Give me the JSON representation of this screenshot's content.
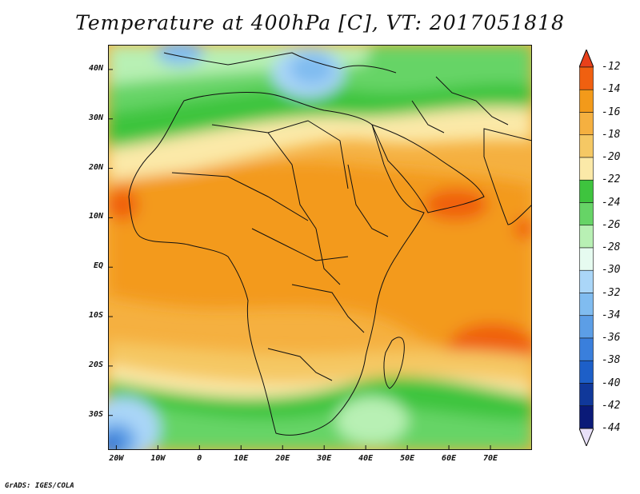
{
  "title": "Temperature at 400hPa [C], VT: 2017051818",
  "credit": "GrADS: IGES/COLA",
  "map": {
    "lon_range": [
      -22,
      80
    ],
    "lat_range": [
      -37,
      45
    ],
    "lat_labels": [
      "40N",
      "30N",
      "20N",
      "10N",
      "EQ",
      "10S",
      "20S",
      "30S"
    ],
    "lat_values": [
      40,
      30,
      20,
      10,
      0,
      -10,
      -20,
      -30
    ],
    "lon_labels": [
      "20W",
      "10W",
      "0",
      "10E",
      "20E",
      "30E",
      "40E",
      "50E",
      "60E",
      "70E"
    ],
    "lon_values": [
      -20,
      -10,
      0,
      10,
      20,
      30,
      40,
      50,
      60,
      70
    ]
  },
  "colorbar": {
    "labels": [
      "-12",
      "-14",
      "-16",
      "-18",
      "-20",
      "-22",
      "-24",
      "-26",
      "-28",
      "-30",
      "-32",
      "-34",
      "-36",
      "-38",
      "-40",
      "-42",
      "-44"
    ],
    "colors": [
      "#e8401a",
      "#f06010",
      "#f39a1a",
      "#f5b040",
      "#f5c864",
      "#fbe9a8",
      "#3ec43e",
      "#66d466",
      "#b8f0b4",
      "#e6fbf0",
      "#aad6f8",
      "#80bcf0",
      "#5c9ee6",
      "#3a7fdc",
      "#1d5fc8",
      "#10389a",
      "#0a1a78",
      "#e8e0f8"
    ]
  }
}
